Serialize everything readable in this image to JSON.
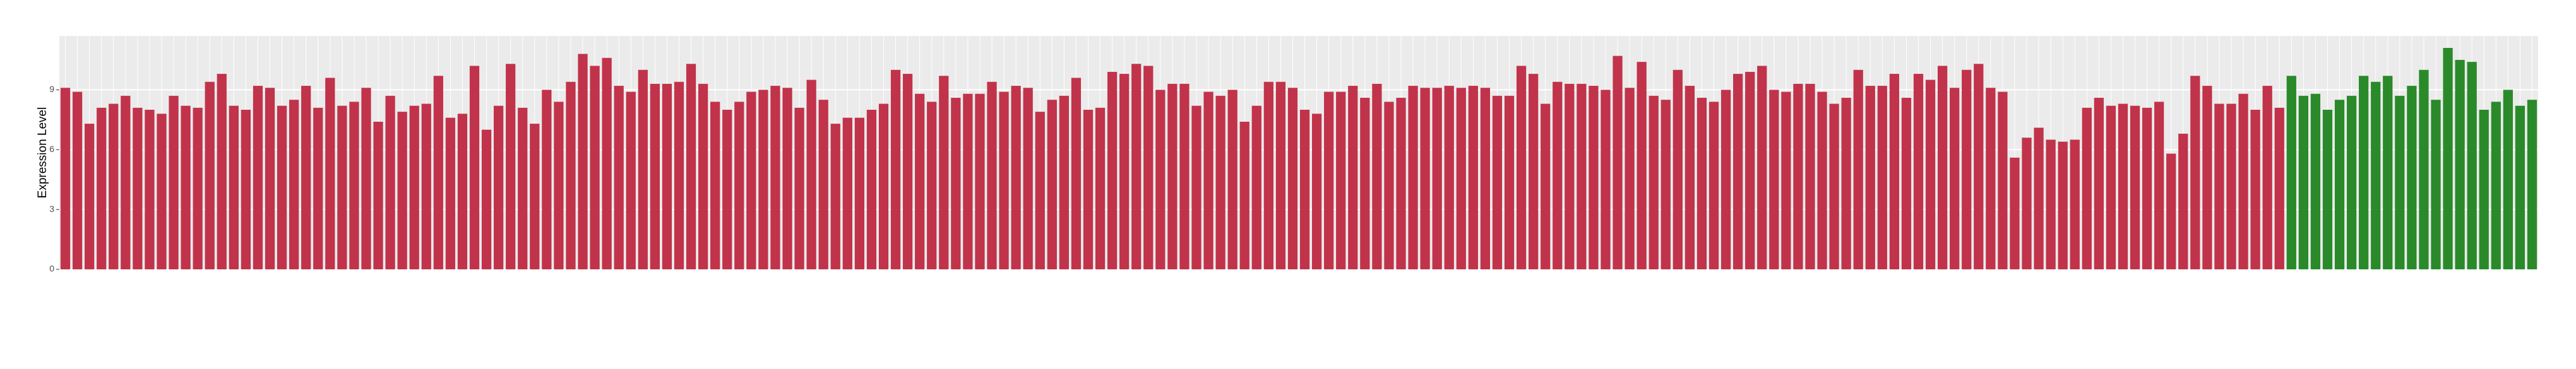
{
  "chart_data": {
    "type": "bar",
    "y_label": "Expression Level",
    "ylim": [
      0,
      11.7
    ],
    "yticks": [
      0,
      3,
      6,
      9
    ],
    "grid": true,
    "series": [
      {
        "color": "#c1334a",
        "values": [
          9.1,
          8.9,
          7.3,
          8.1,
          8.3,
          8.7,
          8.1,
          8.0,
          7.8,
          8.7,
          8.2,
          8.1,
          9.4,
          9.8,
          8.2,
          8.0,
          9.2,
          9.1,
          8.2,
          8.5,
          9.2,
          8.1,
          9.6,
          8.2,
          8.4,
          9.1,
          7.4,
          8.7,
          7.9,
          8.2,
          8.3,
          9.7,
          7.6,
          7.8,
          10.2,
          7.0,
          8.2,
          10.3,
          8.1,
          7.3,
          9.0,
          8.4,
          9.4,
          10.8,
          10.2,
          10.6,
          9.2,
          8.9,
          10.0,
          9.3,
          9.3,
          9.4,
          10.3,
          9.3,
          8.4,
          8.0,
          8.4,
          8.9,
          9.0,
          9.2,
          9.1,
          8.1,
          9.5,
          8.5,
          7.3,
          7.6,
          7.6,
          8.0,
          8.3,
          10.0,
          9.8,
          8.8,
          8.4,
          9.7,
          8.6,
          8.8,
          8.8,
          9.4,
          8.9,
          9.2,
          9.1,
          7.9,
          8.5,
          8.7,
          9.6,
          8.0,
          8.1,
          9.9,
          9.8,
          10.3,
          10.2,
          9.0,
          9.3,
          9.3,
          8.2,
          8.9,
          8.7,
          9.0,
          7.4,
          8.2,
          9.4,
          9.4,
          9.1,
          8.0,
          7.8,
          8.9,
          8.9,
          9.2,
          8.6,
          9.3,
          8.4,
          8.6,
          9.2,
          9.1,
          9.1,
          9.2,
          9.1,
          9.2,
          9.1,
          8.7,
          8.7,
          10.2,
          9.8,
          8.3,
          9.4,
          9.3,
          9.3,
          9.2,
          9.0,
          10.7,
          9.1,
          10.4,
          8.7,
          8.5,
          10.0,
          9.2,
          8.6,
          8.4,
          9.0,
          9.8,
          9.9,
          10.2,
          9.0,
          8.9,
          9.3,
          9.3,
          8.9,
          8.3,
          8.6,
          10.0,
          9.2,
          9.2,
          9.8,
          8.6,
          9.8,
          9.5,
          10.2,
          9.1,
          10.0,
          10.3,
          9.1,
          8.9,
          5.6,
          6.6,
          7.1,
          6.5,
          6.4,
          6.5,
          8.1,
          8.6,
          8.2,
          8.3,
          8.2,
          8.1,
          8.4,
          5.8,
          6.8,
          9.7,
          9.2,
          8.3,
          8.3,
          8.8,
          8.0,
          9.2,
          8.1
        ]
      },
      {
        "color": "#2a8a2a",
        "values": [
          9.7,
          8.7,
          8.8,
          8.0,
          8.5,
          8.7,
          9.7,
          9.4,
          9.7,
          8.7,
          9.2,
          10.0,
          8.5,
          11.1,
          10.5,
          10.4,
          8.0,
          8.4,
          9.0,
          8.2,
          8.5
        ]
      }
    ]
  }
}
